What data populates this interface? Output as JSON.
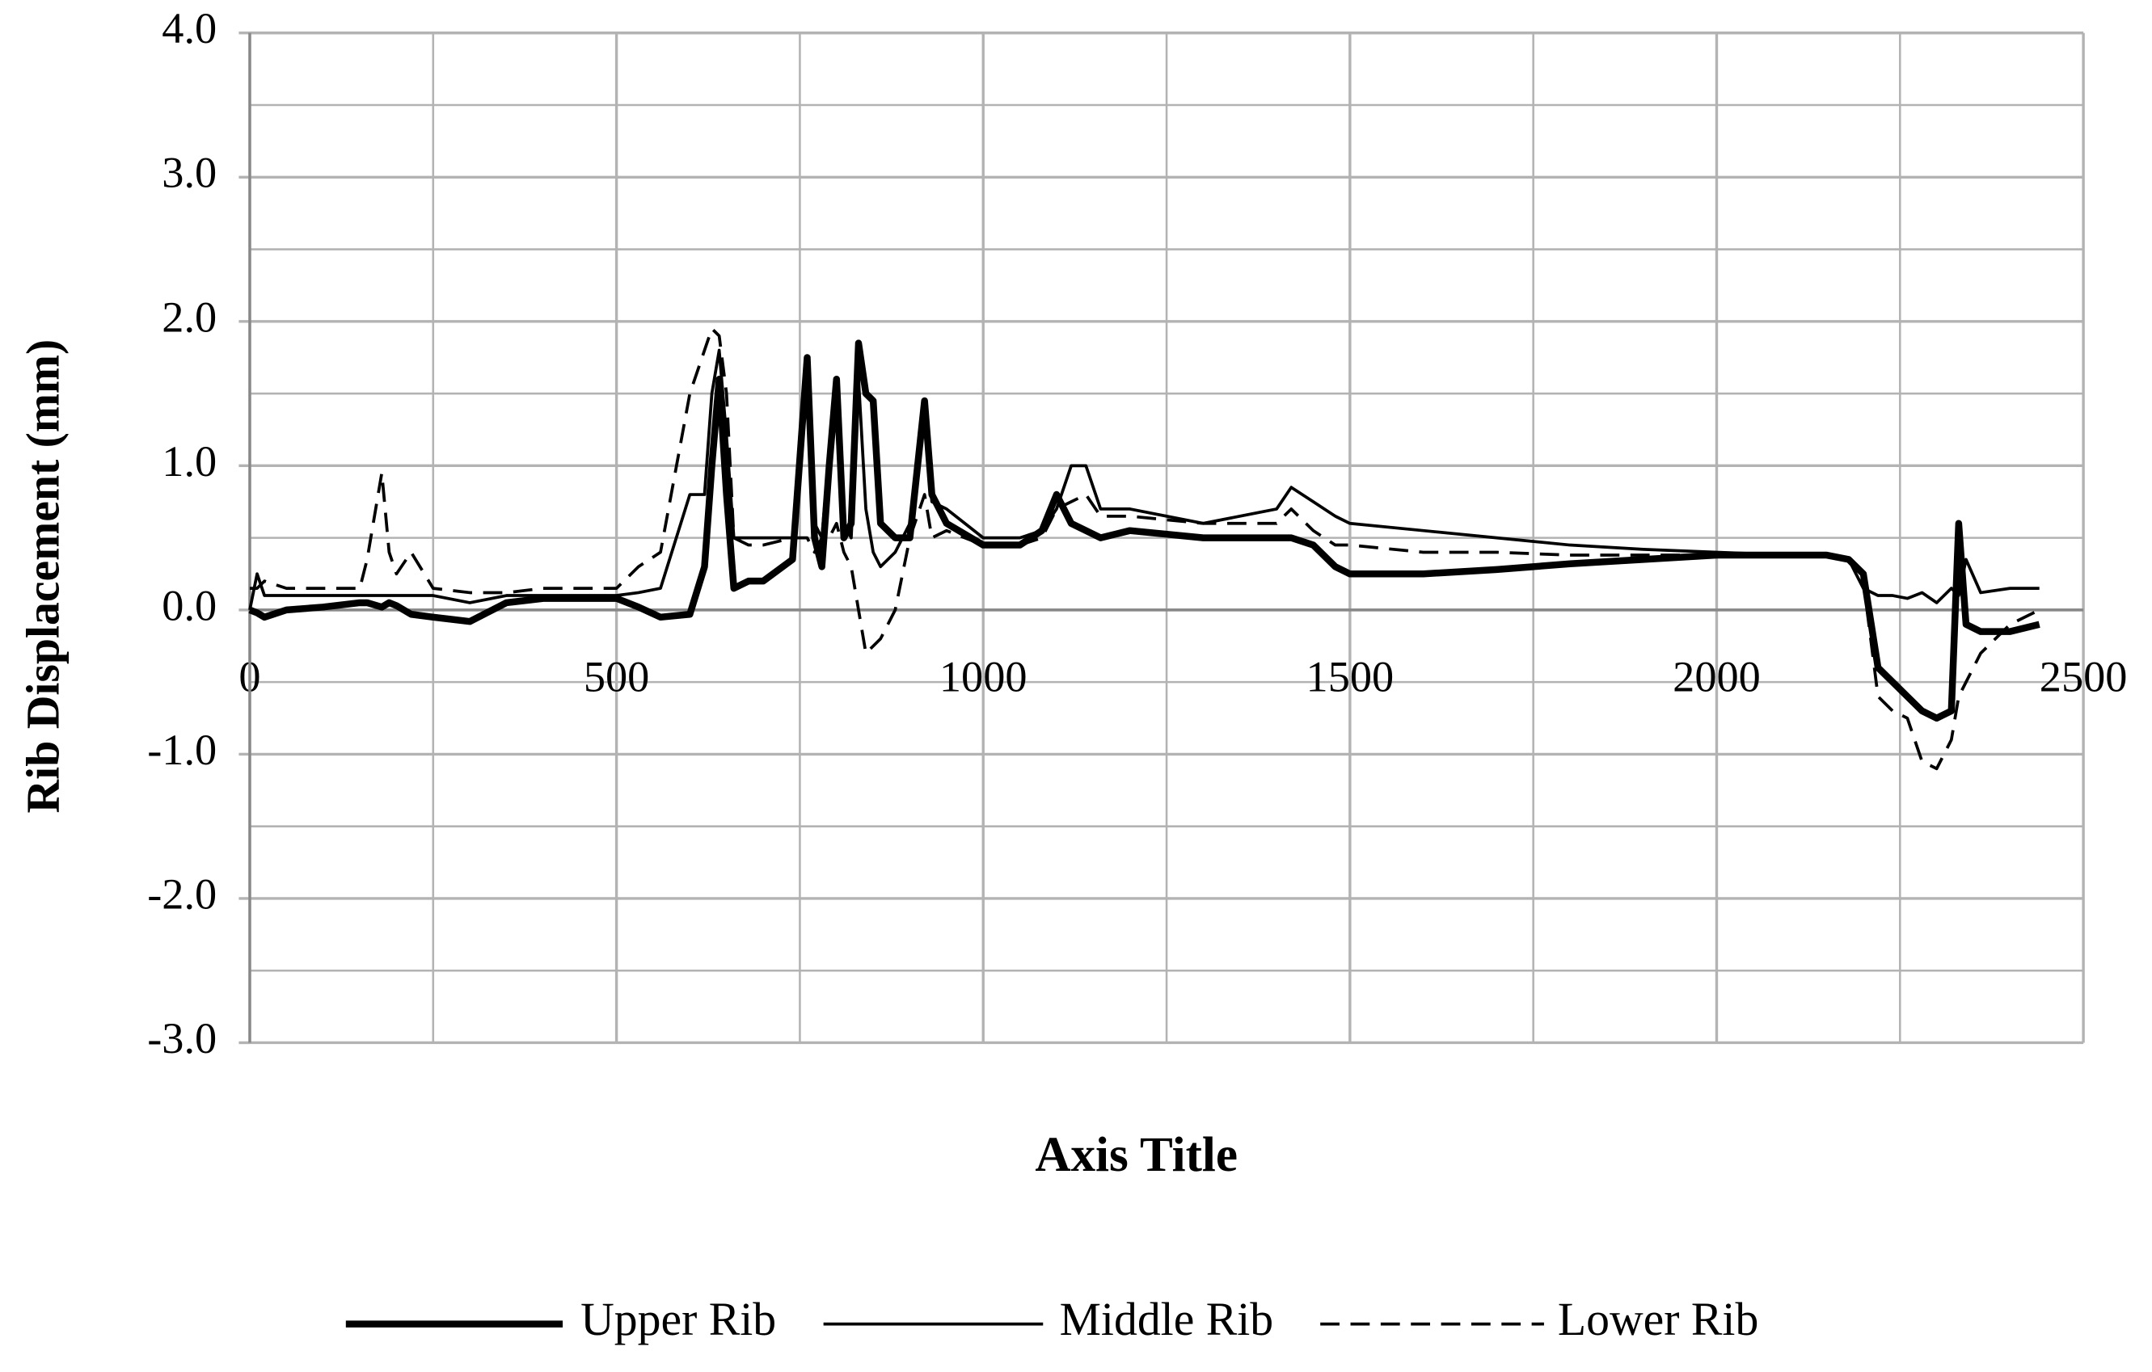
{
  "chart_data": {
    "type": "line",
    "ylabel": "Rib Displacement (mm)",
    "xlabel": "Axis Title",
    "x": [
      0,
      10,
      20,
      50,
      100,
      150,
      160,
      180,
      190,
      200,
      220,
      250,
      300,
      350,
      400,
      450,
      500,
      530,
      560,
      600,
      620,
      630,
      640,
      650,
      660,
      680,
      700,
      740,
      760,
      770,
      780,
      790,
      800,
      810,
      820,
      830,
      840,
      850,
      860,
      880,
      900,
      920,
      930,
      950,
      1000,
      1050,
      1080,
      1100,
      1120,
      1140,
      1160,
      1200,
      1300,
      1400,
      1420,
      1450,
      1480,
      1500,
      1600,
      1700,
      1800,
      1900,
      2000,
      2100,
      2150,
      2180,
      2200,
      2220,
      2240,
      2260,
      2280,
      2300,
      2320,
      2330,
      2340,
      2360,
      2400,
      2440
    ],
    "series": [
      {
        "name": "Upper Rib",
        "color": "#000000",
        "line_style": "thick",
        "values": [
          0,
          -0.02,
          -0.05,
          0,
          0.02,
          0.05,
          0.05,
          0.02,
          0.05,
          0.03,
          -0.03,
          -0.05,
          -0.08,
          0.05,
          0.08,
          0.08,
          0.08,
          0.02,
          -0.05,
          -0.03,
          0.3,
          1.0,
          1.6,
          0.8,
          0.15,
          0.2,
          0.2,
          0.35,
          1.75,
          0.5,
          0.3,
          1.0,
          1.6,
          0.5,
          0.6,
          1.85,
          1.5,
          1.45,
          0.6,
          0.5,
          0.5,
          1.45,
          0.8,
          0.6,
          0.45,
          0.45,
          0.55,
          0.8,
          0.6,
          0.55,
          0.5,
          0.55,
          0.5,
          0.5,
          0.5,
          0.45,
          0.3,
          0.25,
          0.25,
          0.28,
          0.32,
          0.35,
          0.38,
          0.38,
          0.38,
          0.35,
          0.25,
          -0.4,
          -0.5,
          -0.6,
          -0.7,
          -0.75,
          -0.7,
          0.6,
          -0.1,
          -0.15,
          -0.15,
          -0.1
        ]
      },
      {
        "name": "Middle Rib",
        "color": "#000000",
        "line_style": "thin",
        "values": [
          0,
          0.25,
          0.1,
          0.1,
          0.1,
          0.1,
          0.1,
          0.1,
          0.1,
          0.1,
          0.1,
          0.1,
          0.05,
          0.1,
          0.1,
          0.1,
          0.1,
          0.12,
          0.15,
          0.8,
          0.8,
          1.5,
          1.8,
          1.2,
          0.5,
          0.5,
          0.5,
          0.5,
          1.7,
          0.6,
          0.5,
          1.1,
          1.5,
          0.6,
          0.5,
          1.6,
          0.7,
          0.4,
          0.3,
          0.4,
          0.6,
          1.3,
          0.75,
          0.7,
          0.5,
          0.5,
          0.55,
          0.7,
          1.0,
          1.0,
          0.7,
          0.7,
          0.6,
          0.7,
          0.85,
          0.75,
          0.65,
          0.6,
          0.55,
          0.5,
          0.45,
          0.42,
          0.4,
          0.38,
          0.38,
          0.35,
          0.15,
          0.1,
          0.1,
          0.08,
          0.12,
          0.05,
          0.15,
          0.1,
          0.35,
          0.12,
          0.15,
          0.15
        ]
      },
      {
        "name": "Lower Rib",
        "color": "#000000",
        "line_style": "dashed",
        "values": [
          0.15,
          0.15,
          0.2,
          0.15,
          0.15,
          0.15,
          0.35,
          0.95,
          0.4,
          0.25,
          0.4,
          0.15,
          0.12,
          0.12,
          0.15,
          0.15,
          0.15,
          0.3,
          0.4,
          1.5,
          1.8,
          1.95,
          1.9,
          1.5,
          0.5,
          0.45,
          0.45,
          0.5,
          0.5,
          0.4,
          0.5,
          0.5,
          0.6,
          0.4,
          0.3,
          0.0,
          -0.3,
          -0.25,
          -0.2,
          0.0,
          0.5,
          0.8,
          0.5,
          0.55,
          0.45,
          0.45,
          0.5,
          0.7,
          0.75,
          0.8,
          0.65,
          0.65,
          0.6,
          0.6,
          0.7,
          0.55,
          0.45,
          0.45,
          0.4,
          0.4,
          0.38,
          0.38,
          0.38,
          0.38,
          0.38,
          0.35,
          0.2,
          -0.6,
          -0.7,
          -0.75,
          -1.05,
          -1.1,
          -0.9,
          -0.6,
          -0.5,
          -0.3,
          -0.1,
          0.0
        ]
      }
    ],
    "xlim": [
      0,
      2500
    ],
    "xticks": [
      0,
      500,
      1000,
      1500,
      2000,
      2500
    ],
    "ylim": [
      -3,
      4
    ],
    "yticks": [
      {
        "value": -3,
        "label": "-3.0"
      },
      {
        "value": -2,
        "label": "-2.0"
      },
      {
        "value": -1,
        "label": "-1.0"
      },
      {
        "value": 0,
        "label": "0.0"
      },
      {
        "value": 1,
        "label": "1.0"
      },
      {
        "value": 2,
        "label": "2.0"
      },
      {
        "value": 3,
        "label": "3.0"
      },
      {
        "value": 4,
        "label": "4.0"
      }
    ],
    "grid": true,
    "minor_grid": true,
    "legend": "bottom"
  }
}
